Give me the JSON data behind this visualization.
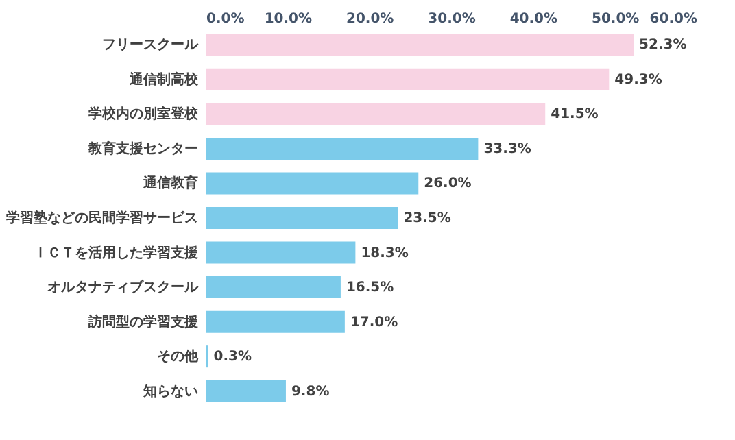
{
  "chart_data": {
    "type": "bar",
    "orientation": "horizontal",
    "categories": [
      "フリースクール",
      "通信制高校",
      "学校内の別室登校",
      "教育支援センター",
      "通信教育",
      "学習塾などの民間学習サービス",
      "ＩＣＴを活用した学習支援",
      "オルタナティブスクール",
      "訪問型の学習支援",
      "その他",
      "知らない"
    ],
    "values": [
      52.3,
      49.3,
      41.5,
      33.3,
      26.0,
      23.5,
      18.3,
      16.5,
      17.0,
      0.3,
      9.8
    ],
    "colors": [
      "#f8d3e3",
      "#f8d3e3",
      "#f8d3e3",
      "#7ccbea",
      "#7ccbea",
      "#7ccbea",
      "#7ccbea",
      "#7ccbea",
      "#7ccbea",
      "#7ccbea",
      "#7ccbea"
    ],
    "value_labels": [
      "52.3%",
      "49.3%",
      "41.5%",
      "33.3%",
      "26.0%",
      "23.5%",
      "18.3%",
      "16.5%",
      "17.0%",
      "0.3%",
      "9.8%"
    ],
    "xlim": [
      0,
      60
    ],
    "xticks": [
      {
        "value": 0,
        "label": "0.0%"
      },
      {
        "value": 10,
        "label": "10.0%"
      },
      {
        "value": 20,
        "label": "20.0%"
      },
      {
        "value": 30,
        "label": "30.0%"
      },
      {
        "value": 40,
        "label": "40.0%"
      },
      {
        "value": 50,
        "label": "50.0%"
      },
      {
        "value": 60,
        "label": "60.0%"
      }
    ],
    "grid": false
  }
}
